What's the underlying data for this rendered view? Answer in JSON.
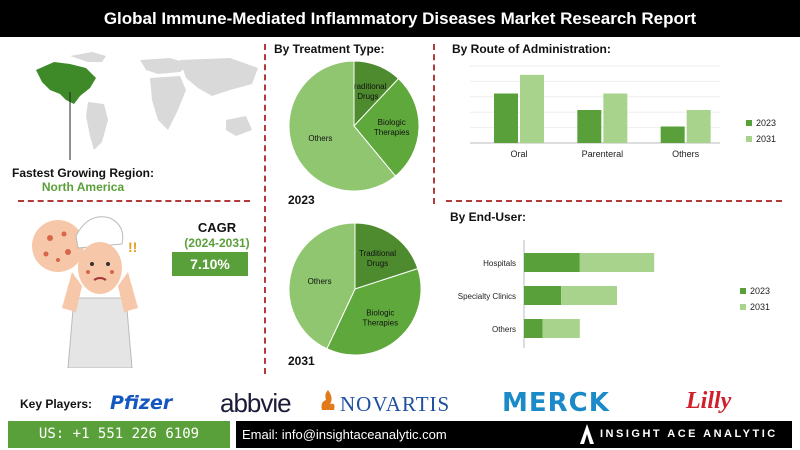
{
  "header": {
    "title": "Global Immune-Mediated Inflammatory Diseases Market Research Report"
  },
  "region": {
    "label": "Fastest Growing Region:",
    "value": "North America"
  },
  "cagr": {
    "title": "CAGR",
    "period": "(2024-2031)",
    "value": "7.10%"
  },
  "treatment": {
    "title": "By Treatment Type:",
    "charts": [
      {
        "year": "2023",
        "slices": [
          {
            "label": "Traditional Drugs",
            "value": 12
          },
          {
            "label": "Biologic Therapies",
            "value": 27
          },
          {
            "label": "Others",
            "value": 61
          }
        ]
      },
      {
        "year": "2031",
        "slices": [
          {
            "label": "Traditional Drugs",
            "value": 20
          },
          {
            "label": "Biologic Therapies",
            "value": 37
          },
          {
            "label": "Others",
            "value": 43
          }
        ]
      }
    ]
  },
  "route": {
    "title": "By Route of Administration:"
  },
  "enduser": {
    "title": "By End-User:"
  },
  "colors": {
    "dark_green": "#5aa03a",
    "light_green": "#a8d38c",
    "pie_dark": "#4d8b2e",
    "pie_mid": "#5fa83c",
    "pie_light": "#8fc66f"
  },
  "chart_data": [
    {
      "type": "pie",
      "title": "2023",
      "categories": [
        "Traditional Drugs",
        "Biologic Therapies",
        "Others"
      ],
      "values": [
        12,
        27,
        61
      ]
    },
    {
      "type": "pie",
      "title": "2031",
      "categories": [
        "Traditional Drugs",
        "Biologic Therapies",
        "Others"
      ],
      "values": [
        20,
        37,
        43
      ]
    },
    {
      "type": "bar",
      "categories": [
        "Oral",
        "Parenteral",
        "Others"
      ],
      "series": [
        {
          "name": "2023",
          "values": [
            45,
            30,
            15
          ]
        },
        {
          "name": "2031",
          "values": [
            62,
            45,
            30
          ]
        }
      ],
      "legend": "right",
      "ylim": [
        0,
        70
      ]
    },
    {
      "type": "bar",
      "orientation": "horizontal",
      "stacked": true,
      "categories": [
        "Hospitals",
        "Specialty Clinics",
        "Others"
      ],
      "series": [
        {
          "name": "2023",
          "values": [
            30,
            20,
            10
          ]
        },
        {
          "name": "2031",
          "values": [
            40,
            30,
            20
          ]
        }
      ],
      "legend": "right",
      "xlim": [
        0,
        100
      ]
    }
  ],
  "key_players": {
    "label": "Key Players:",
    "logos": [
      "Pfizer",
      "abbvie",
      "NOVARTIS",
      "MERCK",
      "Lilly"
    ]
  },
  "footer": {
    "phone": "US: +1 551 226 6109",
    "email": "Email: info@insightaceanalytic.com",
    "brand": "INSIGHT ACE ANALYTIC"
  }
}
